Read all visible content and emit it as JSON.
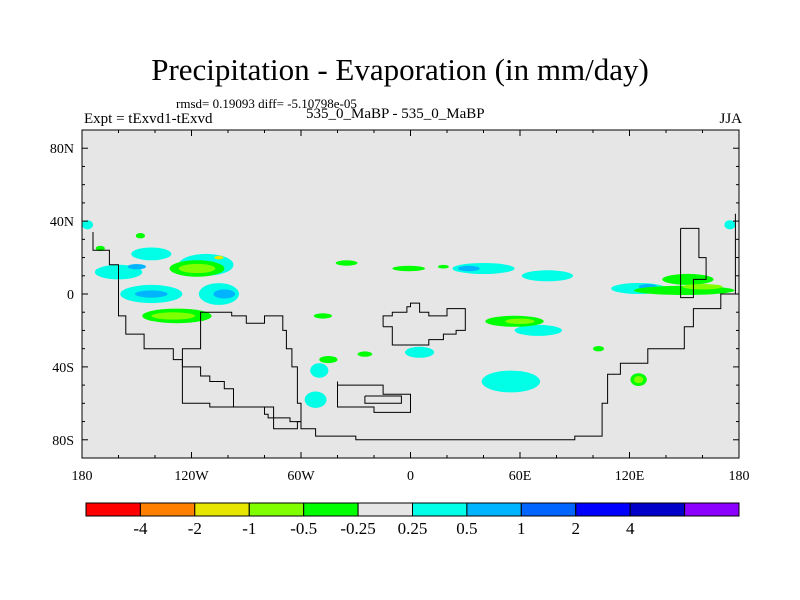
{
  "header": {
    "title": "Precipitation - Evaporation (in mm/day)",
    "stats": "rmsd= 0.19093 diff= -5.10798e-05",
    "left_label": "Expt = tExvd1-tExvd",
    "center_label": "535_0_MaBP - 535_0_MaBP",
    "right_label": "JJA"
  },
  "chart_data": {
    "type": "heatmap",
    "title": "Precipitation - Evaporation (in mm/day)",
    "xlabel": "",
    "ylabel": "",
    "x_ticks": [
      {
        "value": -180,
        "label": "180"
      },
      {
        "value": -120,
        "label": "120W"
      },
      {
        "value": -60,
        "label": "60W"
      },
      {
        "value": 0,
        "label": "0"
      },
      {
        "value": 60,
        "label": "60E"
      },
      {
        "value": 120,
        "label": "120E"
      },
      {
        "value": 180,
        "label": "180"
      }
    ],
    "y_ticks": [
      {
        "value": 80,
        "label": "80N"
      },
      {
        "value": 40,
        "label": "40N"
      },
      {
        "value": 0,
        "label": "0"
      },
      {
        "value": -40,
        "label": "40S"
      },
      {
        "value": -80,
        "label": "80S"
      }
    ],
    "xlim": [
      -180,
      180
    ],
    "ylim": [
      -90,
      90
    ],
    "background_color": "#e6e6e6",
    "colorbar": {
      "colors": [
        "#ff0000",
        "#ff8000",
        "#e6e600",
        "#80ff00",
        "#00ff00",
        "#e6e6e6",
        "#00ffe6",
        "#00b4ff",
        "#0064ff",
        "#0000ff",
        "#0000c8",
        "#8c00ff"
      ],
      "labels": [
        "-4",
        "-2",
        "-1",
        "-0.5",
        "-0.25",
        "0.25",
        "0.5",
        "1",
        "2",
        "4"
      ]
    },
    "anomaly_regions": [
      {
        "level": "0.25",
        "color": "#00ffe6",
        "lon": -160,
        "lat": 12,
        "dlon": 26,
        "dlat": 8
      },
      {
        "level": "0.25",
        "color": "#00ffe6",
        "lon": -142,
        "lat": 22,
        "dlon": 22,
        "dlat": 7
      },
      {
        "level": "0.25",
        "color": "#00ffe6",
        "lon": -112,
        "lat": 16,
        "dlon": 30,
        "dlat": 12
      },
      {
        "level": "0.25",
        "color": "#00ffe6",
        "lon": -142,
        "lat": 0,
        "dlon": 34,
        "dlat": 10
      },
      {
        "level": "0.25",
        "color": "#00ffe6",
        "lon": -105,
        "lat": 0,
        "dlon": 22,
        "dlat": 12
      },
      {
        "level": "0.25",
        "color": "#00ffe6",
        "lon": -177,
        "lat": 38,
        "dlon": 6,
        "dlat": 5
      },
      {
        "level": "0.25",
        "color": "#00ffe6",
        "lon": 40,
        "lat": 14,
        "dlon": 34,
        "dlat": 6
      },
      {
        "level": "0.25",
        "color": "#00ffe6",
        "lon": 75,
        "lat": 10,
        "dlon": 28,
        "dlat": 6
      },
      {
        "level": "0.25",
        "color": "#00ffe6",
        "lon": 125,
        "lat": 3,
        "dlon": 30,
        "dlat": 6
      },
      {
        "level": "0.25",
        "color": "#00ffe6",
        "lon": 70,
        "lat": -20,
        "dlon": 26,
        "dlat": 6
      },
      {
        "level": "0.25",
        "color": "#00ffe6",
        "lon": 5,
        "lat": -32,
        "dlon": 16,
        "dlat": 6
      },
      {
        "level": "0.25",
        "color": "#00ffe6",
        "lon": -50,
        "lat": -42,
        "dlon": 10,
        "dlat": 8
      },
      {
        "level": "0.25",
        "color": "#00ffe6",
        "lon": -52,
        "lat": -58,
        "dlon": 12,
        "dlat": 9
      },
      {
        "level": "0.25",
        "color": "#00ffe6",
        "lon": 55,
        "lat": -48,
        "dlon": 32,
        "dlat": 12
      },
      {
        "level": "0.25",
        "color": "#00ffe6",
        "lon": 175,
        "lat": 38,
        "dlon": 6,
        "dlat": 5
      },
      {
        "level": "0.5",
        "color": "#00b4ff",
        "lon": -142,
        "lat": 0,
        "dlon": 18,
        "dlat": 4
      },
      {
        "level": "0.5",
        "color": "#00b4ff",
        "lon": -102,
        "lat": 0,
        "dlon": 12,
        "dlat": 5
      },
      {
        "level": "0.5",
        "color": "#00b4ff",
        "lon": -150,
        "lat": 15,
        "dlon": 10,
        "dlat": 3
      },
      {
        "level": "0.5",
        "color": "#00b4ff",
        "lon": 32,
        "lat": 14,
        "dlon": 12,
        "dlat": 3
      },
      {
        "level": "0.5",
        "color": "#00b4ff",
        "lon": 130,
        "lat": 4,
        "dlon": 10,
        "dlat": 3
      },
      {
        "level": "-0.25",
        "color": "#00ff00",
        "lon": -117,
        "lat": 14,
        "dlon": 30,
        "dlat": 9
      },
      {
        "level": "-0.25",
        "color": "#00ff00",
        "lon": -128,
        "lat": -12,
        "dlon": 38,
        "dlat": 8
      },
      {
        "level": "-0.25",
        "color": "#00ff00",
        "lon": 57,
        "lat": -15,
        "dlon": 32,
        "dlat": 6
      },
      {
        "level": "-0.25",
        "color": "#00ff00",
        "lon": 150,
        "lat": 2,
        "dlon": 55,
        "dlat": 5
      },
      {
        "level": "-0.25",
        "color": "#00ff00",
        "lon": 152,
        "lat": 8,
        "dlon": 28,
        "dlat": 6
      },
      {
        "level": "-0.25",
        "color": "#00ff00",
        "lon": 125,
        "lat": -47,
        "dlon": 9,
        "dlat": 7
      },
      {
        "level": "-0.25",
        "color": "#00ff00",
        "lon": -35,
        "lat": 17,
        "dlon": 12,
        "dlat": 3
      },
      {
        "level": "-0.25",
        "color": "#00ff00",
        "lon": -1,
        "lat": 14,
        "dlon": 18,
        "dlat": 3
      },
      {
        "level": "-0.25",
        "color": "#00ff00",
        "lon": -45,
        "lat": -36,
        "dlon": 10,
        "dlat": 4
      },
      {
        "level": "-0.25",
        "color": "#00ff00",
        "lon": -25,
        "lat": -33,
        "dlon": 8,
        "dlat": 3
      },
      {
        "level": "-0.25",
        "color": "#00ff00",
        "lon": -48,
        "lat": -12,
        "dlon": 10,
        "dlat": 3
      },
      {
        "level": "-0.25",
        "color": "#00ff00",
        "lon": -170,
        "lat": 25,
        "dlon": 5,
        "dlat": 3
      },
      {
        "level": "-0.25",
        "color": "#00ff00",
        "lon": -148,
        "lat": 32,
        "dlon": 5,
        "dlat": 3
      },
      {
        "level": "-0.25",
        "color": "#00ff00",
        "lon": 18,
        "lat": 15,
        "dlon": 6,
        "dlat": 2
      },
      {
        "level": "-0.25",
        "color": "#00ff00",
        "lon": 103,
        "lat": -30,
        "dlon": 6,
        "dlat": 3
      },
      {
        "level": "-0.5",
        "color": "#80ff00",
        "lon": -117,
        "lat": 14,
        "dlon": 20,
        "dlat": 5
      },
      {
        "level": "-0.5",
        "color": "#80ff00",
        "lon": -130,
        "lat": -12,
        "dlon": 24,
        "dlat": 4
      },
      {
        "level": "-0.5",
        "color": "#80ff00",
        "lon": 60,
        "lat": -15,
        "dlon": 16,
        "dlat": 3
      },
      {
        "level": "-0.5",
        "color": "#80ff00",
        "lon": 160,
        "lat": 4,
        "dlon": 22,
        "dlat": 3
      },
      {
        "level": "-0.5",
        "color": "#80ff00",
        "lon": 125,
        "lat": -47,
        "dlon": 5,
        "dlat": 4
      },
      {
        "level": "-1",
        "color": "#e6e600",
        "lon": -105,
        "lat": 20,
        "dlon": 5,
        "dlat": 2
      }
    ],
    "landmasks": [
      [
        [
          -174,
          34
        ],
        [
          -174,
          24
        ],
        [
          -165,
          24
        ],
        [
          -160,
          16
        ],
        [
          -160,
          0
        ],
        [
          -156,
          -12
        ],
        [
          -152,
          -22
        ],
        [
          -146,
          -22
        ],
        [
          -144,
          -30
        ],
        [
          -130,
          -30
        ],
        [
          -125,
          -36
        ],
        [
          -115,
          -40
        ],
        [
          -110,
          -45
        ],
        [
          -102,
          -48
        ],
        [
          -97,
          -52
        ],
        [
          -95,
          -62
        ],
        [
          -80,
          -62
        ],
        [
          -78,
          -66
        ],
        [
          -66,
          -68
        ],
        [
          -60,
          -70
        ],
        [
          -52,
          -74
        ],
        [
          -50,
          -78
        ],
        [
          -30,
          -78
        ],
        [
          -30,
          -80
        ],
        [
          90,
          -80
        ],
        [
          105,
          -78
        ],
        [
          108,
          -60
        ],
        [
          115,
          -44
        ],
        [
          130,
          -38
        ],
        [
          150,
          -30
        ],
        [
          155,
          -18
        ],
        [
          170,
          -8
        ],
        [
          178,
          0
        ],
        [
          178,
          44
        ]
      ],
      [
        [
          -112,
          -10
        ],
        [
          -98,
          -10
        ],
        [
          -90,
          -12
        ],
        [
          -80,
          -16
        ],
        [
          -70,
          -12
        ],
        [
          -68,
          -20
        ],
        [
          -65,
          -30
        ],
        [
          -62,
          -40
        ],
        [
          -60,
          -60
        ],
        [
          -62,
          -70
        ],
        [
          -75,
          -74
        ],
        [
          -110,
          -62
        ],
        [
          -125,
          -60
        ],
        [
          -125,
          -40
        ],
        [
          -115,
          -30
        ],
        [
          -112,
          -10
        ]
      ],
      [
        [
          -15,
          -18
        ],
        [
          -10,
          -12
        ],
        [
          -2,
          -10
        ],
        [
          0,
          -7
        ],
        [
          5,
          -5
        ],
        [
          10,
          -10
        ],
        [
          20,
          -12
        ],
        [
          30,
          -8
        ],
        [
          30,
          -15
        ],
        [
          25,
          -20
        ],
        [
          18,
          -22
        ],
        [
          10,
          -25
        ],
        [
          0,
          -28
        ],
        [
          -10,
          -28
        ],
        [
          -15,
          -18
        ]
      ],
      [
        [
          -40,
          -48
        ],
        [
          -30,
          -50
        ],
        [
          -15,
          -50
        ],
        [
          0,
          -55
        ],
        [
          0,
          -62
        ],
        [
          -20,
          -65
        ],
        [
          -40,
          -62
        ],
        [
          -40,
          -48
        ]
      ],
      [
        [
          -25,
          -56
        ],
        [
          -5,
          -56
        ],
        [
          -5,
          -60
        ],
        [
          -25,
          -60
        ],
        [
          -25,
          -56
        ]
      ],
      [
        [
          148,
          36
        ],
        [
          148,
          -2
        ],
        [
          155,
          -2
        ],
        [
          155,
          8
        ],
        [
          162,
          8
        ],
        [
          162,
          20
        ],
        [
          158,
          20
        ],
        [
          158,
          36
        ],
        [
          148,
          36
        ]
      ]
    ]
  }
}
